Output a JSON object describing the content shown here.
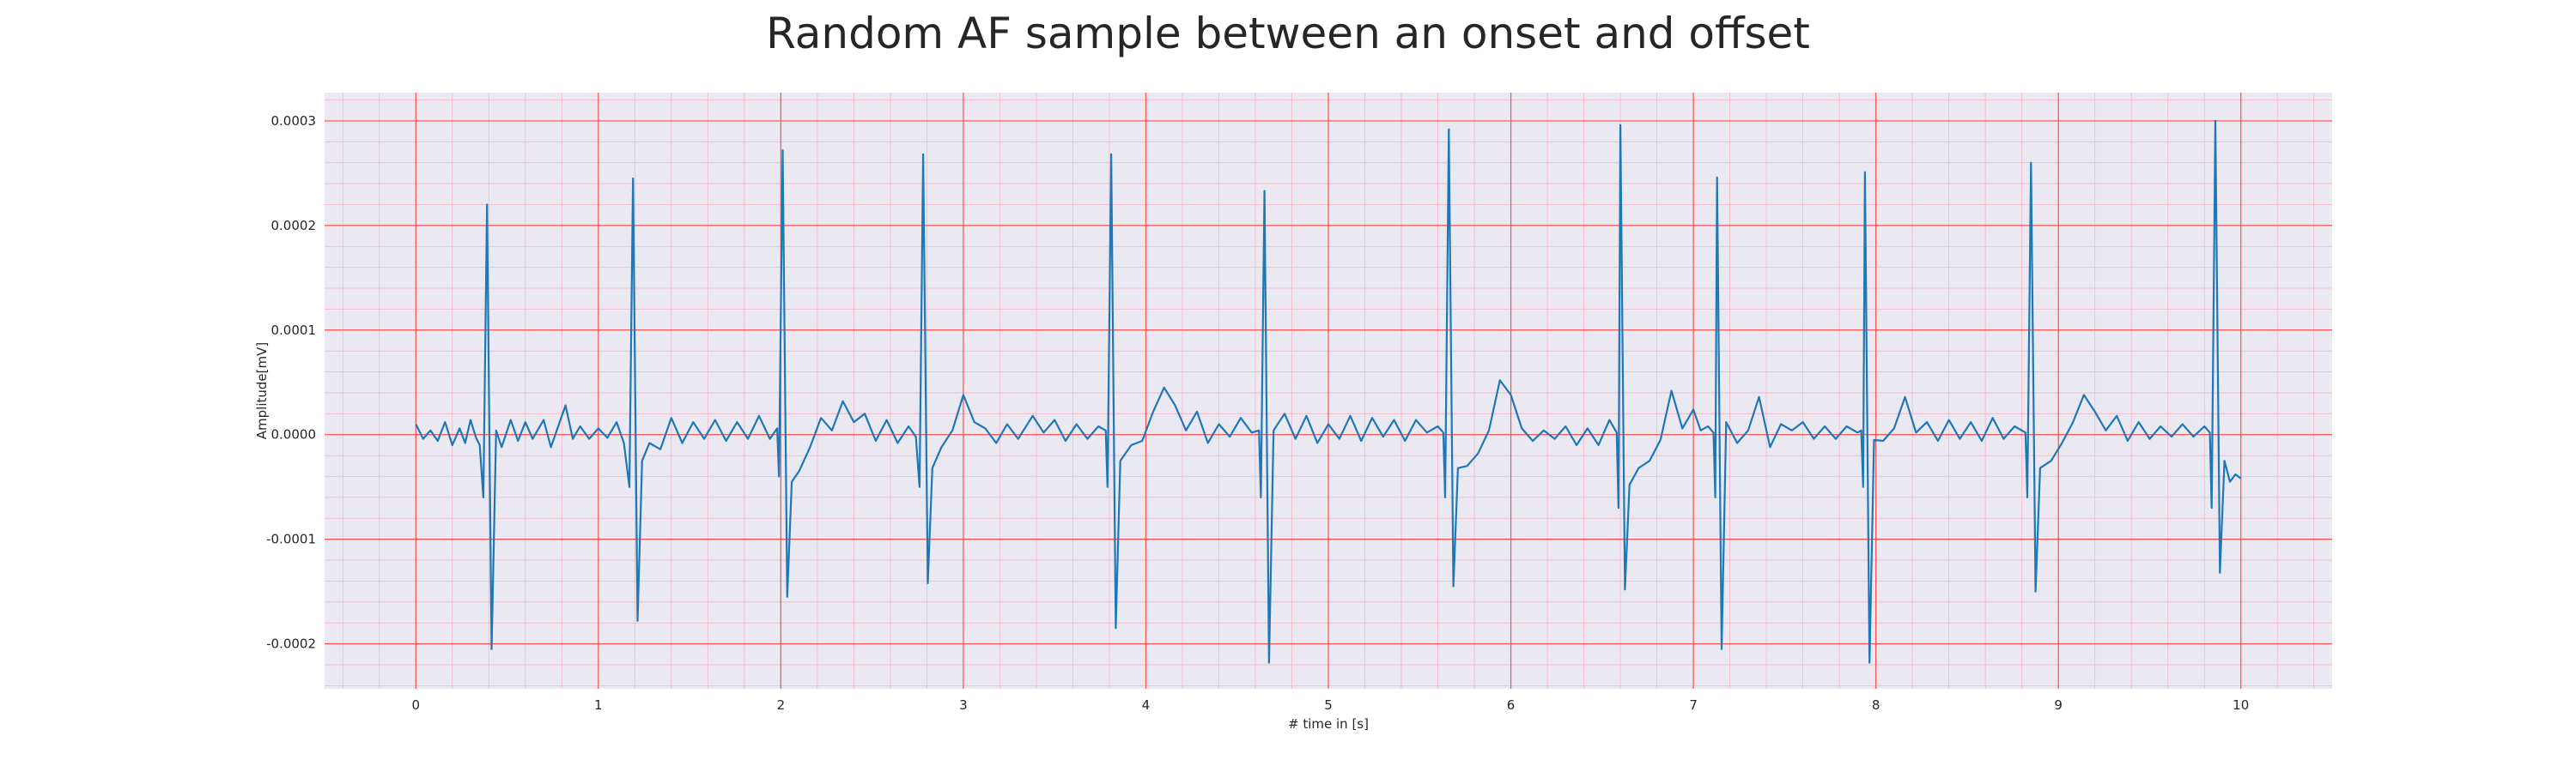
{
  "chart_data": {
    "type": "line",
    "title": "Random AF sample between an onset and offset",
    "xlabel": "# time in [s]",
    "ylabel": "Amplitude[mV]",
    "xlim": [
      -0.5,
      10.5
    ],
    "ylim": [
      -0.000243,
      0.000327
    ],
    "grid": true,
    "x_ticks": [
      "0",
      "1",
      "2",
      "3",
      "4",
      "5",
      "6",
      "7",
      "8",
      "9",
      "10"
    ],
    "y_ticks": [
      "-0.0002",
      "-0.0001",
      "0.0000",
      "0.0001",
      "0.0002",
      "0.0003"
    ],
    "colors": {
      "background": "#eae9f2",
      "major_grid": "#ff4d4d",
      "minor_grid": "#f7b3c3",
      "line": "#1f77b4"
    },
    "series": [
      {
        "beat_times": [
          0.39,
          1.19,
          2.01,
          2.78,
          3.81,
          4.65,
          5.66,
          6.6,
          7.13,
          7.94,
          8.85,
          9.86
        ],
        "beat_peaks": [
          0.00022,
          0.000245,
          0.000272,
          0.000268,
          0.000268,
          0.000233,
          0.000292,
          0.000296,
          0.000246,
          0.000251,
          0.00026,
          0.0003
        ],
        "beat_troughs": [
          -0.000205,
          -0.000178,
          -0.000155,
          -0.000142,
          -0.000185,
          -0.000218,
          -0.000145,
          -0.000148,
          -0.000205,
          -0.000218,
          -0.00015,
          -0.000132
        ],
        "points": [
          [
            0.0,
            1e-05
          ],
          [
            0.04,
            -4e-06
          ],
          [
            0.08,
            4e-06
          ],
          [
            0.12,
            -6e-06
          ],
          [
            0.16,
            1.2e-05
          ],
          [
            0.2,
            -1e-05
          ],
          [
            0.24,
            6e-06
          ],
          [
            0.27,
            -8e-06
          ],
          [
            0.3,
            1.4e-05
          ],
          [
            0.33,
            -3e-06
          ],
          [
            0.35,
            -1e-05
          ],
          [
            0.37,
            -6e-05
          ],
          [
            0.39,
            0.00022
          ],
          [
            0.415,
            -0.000205
          ],
          [
            0.44,
            4e-06
          ],
          [
            0.47,
            -1.2e-05
          ],
          [
            0.52,
            1.4e-05
          ],
          [
            0.56,
            -6e-06
          ],
          [
            0.6,
            1.2e-05
          ],
          [
            0.64,
            -4e-06
          ],
          [
            0.7,
            1.4e-05
          ],
          [
            0.74,
            -1.2e-05
          ],
          [
            0.82,
            2.8e-05
          ],
          [
            0.86,
            -4e-06
          ],
          [
            0.9,
            8e-06
          ],
          [
            0.95,
            -4e-06
          ],
          [
            1.0,
            6e-06
          ],
          [
            1.05,
            -3e-06
          ],
          [
            1.1,
            1.2e-05
          ],
          [
            1.14,
            -8e-06
          ],
          [
            1.17,
            -5e-05
          ],
          [
            1.19,
            0.000245
          ],
          [
            1.215,
            -0.000178
          ],
          [
            1.24,
            -2.5e-05
          ],
          [
            1.28,
            -8e-06
          ],
          [
            1.34,
            -1.4e-05
          ],
          [
            1.4,
            1.6e-05
          ],
          [
            1.46,
            -8e-06
          ],
          [
            1.52,
            1.2e-05
          ],
          [
            1.58,
            -4e-06
          ],
          [
            1.64,
            1.4e-05
          ],
          [
            1.7,
            -6e-06
          ],
          [
            1.76,
            1.2e-05
          ],
          [
            1.82,
            -4e-06
          ],
          [
            1.88,
            1.8e-05
          ],
          [
            1.94,
            -4e-06
          ],
          [
            1.98,
            6e-06
          ],
          [
            1.99,
            -4e-05
          ],
          [
            2.01,
            0.000272
          ],
          [
            2.035,
            -0.000155
          ],
          [
            2.06,
            -4.5e-05
          ],
          [
            2.1,
            -3.5e-05
          ],
          [
            2.16,
            -1.2e-05
          ],
          [
            2.22,
            1.6e-05
          ],
          [
            2.28,
            4e-06
          ],
          [
            2.34,
            3.2e-05
          ],
          [
            2.4,
            1.2e-05
          ],
          [
            2.46,
            2e-05
          ],
          [
            2.52,
            -6e-06
          ],
          [
            2.58,
            1.4e-05
          ],
          [
            2.64,
            -8e-06
          ],
          [
            2.7,
            8e-06
          ],
          [
            2.74,
            -2e-06
          ],
          [
            2.76,
            -5e-05
          ],
          [
            2.78,
            0.000268
          ],
          [
            2.805,
            -0.000142
          ],
          [
            2.83,
            -3.2e-05
          ],
          [
            2.88,
            -1.2e-05
          ],
          [
            2.94,
            4e-06
          ],
          [
            3.0,
            3.8e-05
          ],
          [
            3.06,
            1.2e-05
          ],
          [
            3.12,
            6e-06
          ],
          [
            3.18,
            -8e-06
          ],
          [
            3.24,
            1e-05
          ],
          [
            3.3,
            -4e-06
          ],
          [
            3.38,
            1.8e-05
          ],
          [
            3.44,
            2e-06
          ],
          [
            3.5,
            1.4e-05
          ],
          [
            3.56,
            -6e-06
          ],
          [
            3.62,
            1e-05
          ],
          [
            3.68,
            -4e-06
          ],
          [
            3.74,
            8e-06
          ],
          [
            3.78,
            4e-06
          ],
          [
            3.79,
            -5e-05
          ],
          [
            3.81,
            0.000268
          ],
          [
            3.835,
            -0.000185
          ],
          [
            3.86,
            -2.5e-05
          ],
          [
            3.92,
            -1e-05
          ],
          [
            3.98,
            -6e-06
          ],
          [
            4.04,
            2.2e-05
          ],
          [
            4.1,
            4.5e-05
          ],
          [
            4.16,
            2.8e-05
          ],
          [
            4.22,
            4e-06
          ],
          [
            4.28,
            2.2e-05
          ],
          [
            4.34,
            -8e-06
          ],
          [
            4.4,
            1e-05
          ],
          [
            4.46,
            -2e-06
          ],
          [
            4.52,
            1.6e-05
          ],
          [
            4.58,
            2e-06
          ],
          [
            4.62,
            4e-06
          ],
          [
            4.63,
            -6e-05
          ],
          [
            4.65,
            0.000233
          ],
          [
            4.675,
            -0.000218
          ],
          [
            4.7,
            4e-06
          ],
          [
            4.76,
            2e-05
          ],
          [
            4.82,
            -4e-06
          ],
          [
            4.88,
            1.8e-05
          ],
          [
            4.94,
            -8e-06
          ],
          [
            5.0,
            1e-05
          ],
          [
            5.06,
            -4e-06
          ],
          [
            5.12,
            1.8e-05
          ],
          [
            5.18,
            -6e-06
          ],
          [
            5.24,
            1.6e-05
          ],
          [
            5.3,
            -2e-06
          ],
          [
            5.36,
            1.4e-05
          ],
          [
            5.42,
            -6e-06
          ],
          [
            5.48,
            1.4e-05
          ],
          [
            5.54,
            2e-06
          ],
          [
            5.6,
            8e-06
          ],
          [
            5.63,
            2e-06
          ],
          [
            5.64,
            -6e-05
          ],
          [
            5.66,
            0.000292
          ],
          [
            5.685,
            -0.000145
          ],
          [
            5.71,
            -3.2e-05
          ],
          [
            5.76,
            -3e-05
          ],
          [
            5.82,
            -1.8e-05
          ],
          [
            5.88,
            4e-06
          ],
          [
            5.94,
            5.2e-05
          ],
          [
            6.0,
            3.8e-05
          ],
          [
            6.06,
            6e-06
          ],
          [
            6.12,
            -6e-06
          ],
          [
            6.18,
            4e-06
          ],
          [
            6.24,
            -4e-06
          ],
          [
            6.3,
            8e-06
          ],
          [
            6.36,
            -1e-05
          ],
          [
            6.42,
            6e-06
          ],
          [
            6.48,
            -1e-05
          ],
          [
            6.54,
            1.4e-05
          ],
          [
            6.58,
            2e-06
          ],
          [
            6.59,
            -7e-05
          ],
          [
            6.6,
            0.000296
          ],
          [
            6.625,
            -0.000148
          ],
          [
            6.65,
            -4.8e-05
          ],
          [
            6.7,
            -3.2e-05
          ],
          [
            6.76,
            -2.5e-05
          ],
          [
            6.82,
            -5e-06
          ],
          [
            6.88,
            4.2e-05
          ],
          [
            6.94,
            6e-06
          ],
          [
            7.0,
            2.4e-05
          ],
          [
            7.04,
            4e-06
          ],
          [
            7.08,
            8e-06
          ],
          [
            7.11,
            2e-06
          ],
          [
            7.12,
            -6e-05
          ],
          [
            7.13,
            0.000246
          ],
          [
            7.155,
            -0.000205
          ],
          [
            7.18,
            1.2e-05
          ],
          [
            7.24,
            -8e-06
          ],
          [
            7.3,
            4e-06
          ],
          [
            7.36,
            3.6e-05
          ],
          [
            7.42,
            -1.2e-05
          ],
          [
            7.48,
            1e-05
          ],
          [
            7.54,
            4e-06
          ],
          [
            7.6,
            1.2e-05
          ],
          [
            7.66,
            -4e-06
          ],
          [
            7.72,
            8e-06
          ],
          [
            7.78,
            -4e-06
          ],
          [
            7.84,
            8e-06
          ],
          [
            7.9,
            2e-06
          ],
          [
            7.92,
            4e-06
          ],
          [
            7.93,
            -5e-05
          ],
          [
            7.94,
            0.000251
          ],
          [
            7.965,
            -0.000218
          ],
          [
            7.99,
            -5e-06
          ],
          [
            8.04,
            -6e-06
          ],
          [
            8.1,
            6e-06
          ],
          [
            8.16,
            3.6e-05
          ],
          [
            8.22,
            2e-06
          ],
          [
            8.28,
            1.2e-05
          ],
          [
            8.34,
            -6e-06
          ],
          [
            8.4,
            1.4e-05
          ],
          [
            8.46,
            -4e-06
          ],
          [
            8.52,
            1.2e-05
          ],
          [
            8.58,
            -6e-06
          ],
          [
            8.64,
            1.6e-05
          ],
          [
            8.7,
            -4e-06
          ],
          [
            8.76,
            8e-06
          ],
          [
            8.82,
            2e-06
          ],
          [
            8.83,
            -6e-05
          ],
          [
            8.85,
            0.00026
          ],
          [
            8.875,
            -0.00015
          ],
          [
            8.9,
            -3.2e-05
          ],
          [
            8.96,
            -2.5e-05
          ],
          [
            9.02,
            -8e-06
          ],
          [
            9.08,
            1.2e-05
          ],
          [
            9.14,
            3.8e-05
          ],
          [
            9.2,
            2.2e-05
          ],
          [
            9.26,
            4e-06
          ],
          [
            9.32,
            1.8e-05
          ],
          [
            9.38,
            -6e-06
          ],
          [
            9.44,
            1.2e-05
          ],
          [
            9.5,
            -4e-06
          ],
          [
            9.56,
            8e-06
          ],
          [
            9.62,
            -2e-06
          ],
          [
            9.68,
            1e-05
          ],
          [
            9.74,
            -2e-06
          ],
          [
            9.8,
            8e-06
          ],
          [
            9.83,
            2e-06
          ],
          [
            9.84,
            -7e-05
          ],
          [
            9.86,
            0.0003
          ],
          [
            9.885,
            -0.000132
          ],
          [
            9.91,
            -2.5e-05
          ],
          [
            9.94,
            -4.5e-05
          ],
          [
            9.97,
            -3.8e-05
          ],
          [
            10.0,
            -4.2e-05
          ]
        ]
      }
    ]
  }
}
